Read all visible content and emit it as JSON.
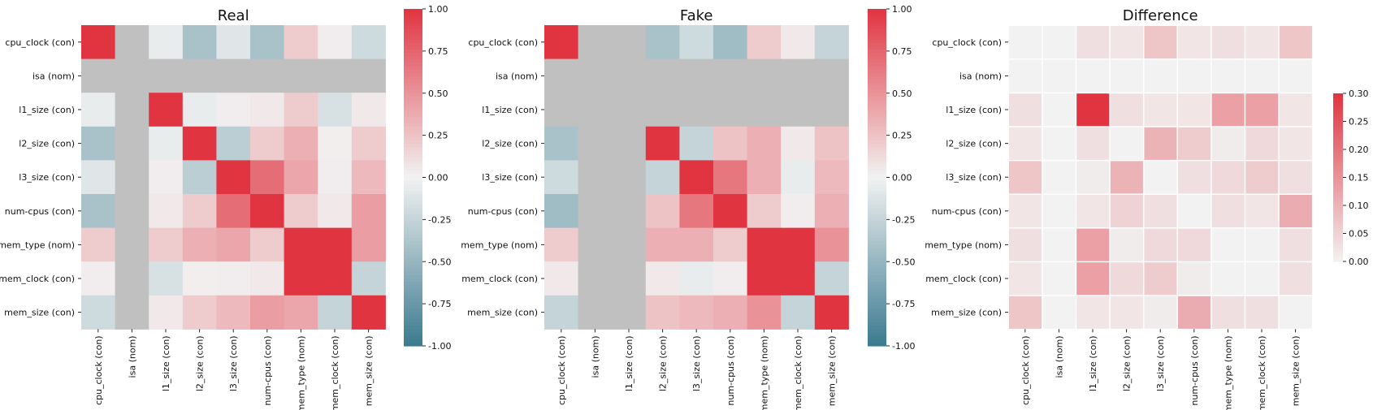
{
  "chart_data": [
    {
      "type": "heatmap",
      "title": "Real",
      "rows": [
        "cpu_clock (con)",
        "isa (nom)",
        "l1_size (con)",
        "l2_size (con)",
        "l3_size (con)",
        "num-cpus (con)",
        "mem_type (nom)",
        "mem_clock (con)",
        "mem_size (con)"
      ],
      "columns": [
        "cpu_clock (con)",
        "isa (nom)",
        "l1_size (con)",
        "l2_size (con)",
        "l3_size (con)",
        "num-cpus (con)",
        "mem_type (nom)",
        "mem_clock (con)",
        "mem_size (con)"
      ],
      "values": [
        [
          1.0,
          null,
          -0.05,
          -0.4,
          -0.1,
          -0.4,
          0.2,
          0.03,
          -0.2
        ],
        [
          null,
          null,
          null,
          null,
          null,
          null,
          null,
          null,
          null
        ],
        [
          -0.05,
          null,
          1.0,
          -0.05,
          0.03,
          0.05,
          0.2,
          -0.15,
          0.05
        ],
        [
          -0.4,
          null,
          -0.05,
          1.0,
          -0.3,
          0.2,
          0.35,
          0.02,
          0.2
        ],
        [
          -0.1,
          null,
          0.03,
          -0.3,
          1.0,
          0.7,
          0.4,
          0.03,
          0.3
        ],
        [
          -0.4,
          null,
          0.05,
          0.2,
          0.7,
          1.0,
          0.2,
          0.05,
          0.45
        ],
        [
          0.2,
          null,
          0.2,
          0.35,
          0.4,
          0.2,
          1.0,
          1.0,
          0.45
        ],
        [
          0.03,
          null,
          -0.15,
          0.02,
          0.03,
          0.05,
          1.0,
          1.0,
          -0.25
        ],
        [
          -0.2,
          null,
          0.05,
          0.2,
          0.3,
          0.45,
          0.4,
          -0.25,
          1.0
        ]
      ],
      "colorbar": {
        "min": -1.0,
        "max": 1.0,
        "ticks": [
          "1.00",
          "0.75",
          "0.50",
          "0.25",
          "0.00",
          "-0.25",
          "-0.50",
          "-0.75",
          "-1.00"
        ]
      }
    },
    {
      "type": "heatmap",
      "title": "Fake",
      "rows": [
        "cpu_clock (con)",
        "isa (nom)",
        "l1_size (con)",
        "l2_size (con)",
        "l3_size (con)",
        "num-cpus (con)",
        "mem_type (nom)",
        "mem_clock (con)",
        "mem_size (con)"
      ],
      "columns": [
        "cpu_clock (con)",
        "isa (nom)",
        "l1_size (con)",
        "l2_size (con)",
        "l3_size (con)",
        "num-cpus (con)",
        "mem_type (nom)",
        "mem_clock (con)",
        "mem_size (con)"
      ],
      "values": [
        [
          1.0,
          null,
          null,
          -0.4,
          -0.2,
          -0.45,
          0.2,
          0.05,
          -0.25
        ],
        [
          null,
          null,
          null,
          null,
          null,
          null,
          null,
          null,
          null
        ],
        [
          null,
          null,
          null,
          null,
          null,
          null,
          null,
          null,
          null
        ],
        [
          -0.4,
          null,
          null,
          1.0,
          -0.25,
          0.25,
          0.35,
          0.05,
          0.25
        ],
        [
          -0.2,
          null,
          null,
          -0.25,
          1.0,
          0.65,
          0.35,
          -0.05,
          0.3
        ],
        [
          -0.45,
          null,
          null,
          0.25,
          0.65,
          1.0,
          0.2,
          0.03,
          0.35
        ],
        [
          0.2,
          null,
          null,
          0.35,
          0.35,
          0.2,
          1.0,
          1.0,
          0.5
        ],
        [
          0.05,
          null,
          null,
          0.05,
          -0.05,
          0.03,
          1.0,
          1.0,
          -0.25
        ],
        [
          -0.25,
          null,
          null,
          0.25,
          0.3,
          0.35,
          0.5,
          -0.25,
          1.0
        ]
      ],
      "colorbar": {
        "min": -1.0,
        "max": 1.0,
        "ticks": [
          "1.00",
          "0.75",
          "0.50",
          "0.25",
          "0.00",
          "-0.25",
          "-0.50",
          "-0.75",
          "-1.00"
        ]
      }
    },
    {
      "type": "heatmap",
      "title": "Difference",
      "rows": [
        "cpu_clock (con)",
        "isa (nom)",
        "l1_size (con)",
        "l2_size (con)",
        "l3_size (con)",
        "num-cpus (con)",
        "mem_type (nom)",
        "mem_clock (con)",
        "mem_size (con)"
      ],
      "columns": [
        "cpu_clock (con)",
        "isa (nom)",
        "l1_size (con)",
        "l2_size (con)",
        "l3_size (con)",
        "num-cpus (con)",
        "mem_type (nom)",
        "mem_clock (con)",
        "mem_size (con)"
      ],
      "values": [
        [
          0.0,
          0.0,
          0.03,
          0.02,
          0.07,
          0.02,
          0.03,
          0.02,
          0.07
        ],
        [
          0.0,
          0.0,
          0.0,
          0.0,
          0.0,
          0.0,
          0.0,
          0.0,
          0.0
        ],
        [
          0.03,
          0.0,
          0.3,
          0.03,
          0.02,
          0.02,
          0.13,
          0.13,
          0.02
        ],
        [
          0.02,
          0.0,
          0.03,
          0.0,
          0.1,
          0.06,
          0.01,
          0.04,
          0.02
        ],
        [
          0.07,
          0.0,
          0.01,
          0.1,
          0.0,
          0.03,
          0.04,
          0.06,
          0.03
        ],
        [
          0.02,
          0.0,
          0.02,
          0.05,
          0.03,
          0.0,
          0.03,
          0.02,
          0.11
        ],
        [
          0.03,
          0.0,
          0.13,
          0.01,
          0.04,
          0.04,
          0.0,
          0.0,
          0.03
        ],
        [
          0.02,
          0.0,
          0.13,
          0.04,
          0.06,
          0.01,
          0.0,
          0.0,
          0.03
        ],
        [
          0.07,
          0.0,
          0.02,
          0.02,
          0.01,
          0.11,
          0.03,
          0.03,
          0.0
        ]
      ],
      "colorbar": {
        "min": 0.0,
        "max": 0.3,
        "ticks": [
          "0.30",
          "0.25",
          "0.20",
          "0.15",
          "0.10",
          "0.05",
          "0.00"
        ]
      }
    }
  ]
}
